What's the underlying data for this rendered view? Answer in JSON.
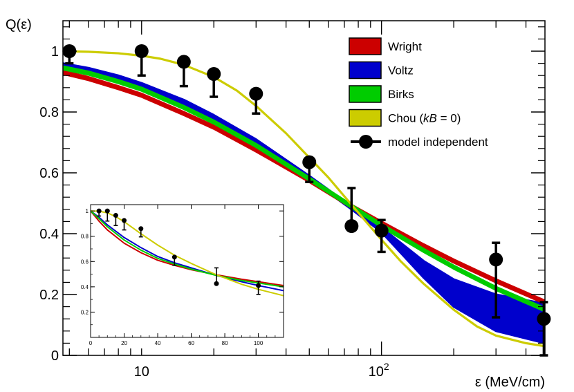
{
  "chart_data": [
    {
      "type": "line",
      "ylabel": "Q(ε)",
      "xlabel": "ε (MeV/cm)",
      "xscale": "log",
      "xlim": [
        4.7,
        480
      ],
      "ylim": [
        0,
        1.1
      ],
      "x_ticks": [
        {
          "value": 10,
          "label": "10"
        },
        {
          "value": 100,
          "label": "10",
          "sup": "2"
        }
      ],
      "y_ticks": [
        {
          "value": 0,
          "label": "0"
        },
        {
          "value": 0.2,
          "label": "0.2"
        },
        {
          "value": 0.4,
          "label": "0.4"
        },
        {
          "value": 0.6,
          "label": "0.6"
        },
        {
          "value": 0.8,
          "label": "0.8"
        },
        {
          "value": 1,
          "label": "1"
        }
      ],
      "legend": {
        "position": "top-right",
        "entries": [
          {
            "label": "Wright",
            "color": "#cc0000",
            "kind": "box"
          },
          {
            "label": "Voltz",
            "color": "#0000cc",
            "kind": "box"
          },
          {
            "label": "Birks",
            "color": "#00cc00",
            "kind": "box"
          },
          {
            "label_parts": [
              "Chou (",
              "kB",
              " = 0)"
            ],
            "color": "#cccc00",
            "kind": "box"
          },
          {
            "label": "model independent",
            "color": "#000000",
            "kind": "marker"
          }
        ]
      },
      "series": [
        {
          "name": "Voltz",
          "color": "#0000cc",
          "kind": "band",
          "x": [
            4.7,
            6,
            8,
            10,
            15,
            20,
            30,
            50,
            75,
            100,
            150,
            200,
            300,
            480
          ],
          "upper": [
            0.96,
            0.945,
            0.92,
            0.895,
            0.84,
            0.79,
            0.71,
            0.59,
            0.49,
            0.42,
            0.31,
            0.25,
            0.2,
            0.17
          ],
          "lower": [
            0.95,
            0.93,
            0.905,
            0.88,
            0.825,
            0.775,
            0.695,
            0.58,
            0.48,
            0.405,
            0.255,
            0.16,
            0.08,
            0.04
          ]
        },
        {
          "name": "Wright",
          "color": "#cc0000",
          "kind": "band",
          "x": [
            4.7,
            6,
            8,
            10,
            15,
            20,
            30,
            50,
            75,
            100,
            150,
            200,
            300,
            480
          ],
          "upper": [
            0.935,
            0.915,
            0.885,
            0.86,
            0.8,
            0.755,
            0.68,
            0.58,
            0.495,
            0.44,
            0.365,
            0.315,
            0.25,
            0.18
          ],
          "lower": [
            0.925,
            0.905,
            0.875,
            0.85,
            0.79,
            0.745,
            0.67,
            0.57,
            0.485,
            0.43,
            0.355,
            0.305,
            0.24,
            0.17
          ]
        },
        {
          "name": "Birks",
          "color": "#00cc00",
          "kind": "band",
          "x": [
            4.7,
            6,
            8,
            10,
            15,
            20,
            30,
            50,
            75,
            100,
            150,
            200,
            300,
            480
          ],
          "upper": [
            0.95,
            0.933,
            0.905,
            0.88,
            0.82,
            0.772,
            0.695,
            0.585,
            0.495,
            0.432,
            0.35,
            0.295,
            0.225,
            0.155
          ],
          "lower": [
            0.94,
            0.923,
            0.895,
            0.87,
            0.81,
            0.762,
            0.685,
            0.575,
            0.485,
            0.422,
            0.34,
            0.285,
            0.215,
            0.145
          ]
        },
        {
          "name": "Chou (kB = 0)",
          "color": "#cccc00",
          "kind": "line",
          "x": [
            4.7,
            6,
            8,
            10,
            12,
            15,
            20,
            25,
            30,
            40,
            50,
            60,
            75,
            100,
            120,
            150,
            200,
            250,
            300,
            400,
            480
          ],
          "y": [
            1.0,
            0.998,
            0.993,
            0.985,
            0.975,
            0.955,
            0.915,
            0.87,
            0.82,
            0.73,
            0.65,
            0.585,
            0.495,
            0.38,
            0.31,
            0.235,
            0.15,
            0.095,
            0.065,
            0.04,
            0.03
          ]
        },
        {
          "name": "model independent",
          "color": "#000000",
          "kind": "points",
          "points": [
            {
              "x": 5,
              "y": 1.0,
              "lo": 0.96,
              "hi": 1.0
            },
            {
              "x": 10,
              "y": 1.0,
              "lo": 0.92,
              "hi": 1.0
            },
            {
              "x": 15,
              "y": 0.965,
              "lo": 0.885,
              "hi": 0.965
            },
            {
              "x": 20,
              "y": 0.925,
              "lo": 0.85,
              "hi": 0.925
            },
            {
              "x": 30,
              "y": 0.86,
              "lo": 0.795,
              "hi": 0.86
            },
            {
              "x": 50,
              "y": 0.635,
              "lo": 0.57,
              "hi": 0.635
            },
            {
              "x": 75,
              "y": 0.425,
              "lo": 0.425,
              "hi": 0.55
            },
            {
              "x": 100,
              "y": 0.41,
              "lo": 0.34,
              "hi": 0.445
            },
            {
              "x": 300,
              "y": 0.315,
              "lo": 0.125,
              "hi": 0.37
            },
            {
              "x": 475,
              "y": 0.12,
              "lo": 0.0,
              "hi": 0.175
            }
          ]
        }
      ]
    },
    {
      "type": "line",
      "role": "inset",
      "xscale": "linear",
      "xlim": [
        0,
        115
      ],
      "ylim": [
        0,
        1.05
      ],
      "x_ticks": [
        {
          "value": 0,
          "label": "0"
        },
        {
          "value": 20,
          "label": "20"
        },
        {
          "value": 40,
          "label": "40"
        },
        {
          "value": 60,
          "label": "60"
        },
        {
          "value": 80,
          "label": "80"
        },
        {
          "value": 100,
          "label": "100"
        }
      ],
      "y_ticks": [
        {
          "value": 0.2,
          "label": "0.2"
        },
        {
          "value": 0.4,
          "label": "0.4"
        },
        {
          "value": 0.6,
          "label": "0.6"
        },
        {
          "value": 0.8,
          "label": "0.8"
        },
        {
          "value": 1,
          "label": "1"
        }
      ],
      "series": [
        {
          "name": "Wright",
          "color": "#cc0000",
          "x": [
            0,
            5,
            10,
            20,
            30,
            40,
            50,
            60,
            75,
            90,
            100,
            115
          ],
          "y": [
            1.0,
            0.92,
            0.85,
            0.745,
            0.67,
            0.61,
            0.57,
            0.535,
            0.495,
            0.46,
            0.44,
            0.41
          ]
        },
        {
          "name": "Voltz",
          "color": "#0000cc",
          "x": [
            0,
            5,
            10,
            20,
            30,
            40,
            50,
            60,
            75,
            90,
            100,
            115
          ],
          "y": [
            1.0,
            0.95,
            0.89,
            0.79,
            0.71,
            0.64,
            0.59,
            0.55,
            0.49,
            0.44,
            0.41,
            0.37
          ]
        },
        {
          "name": "Birks",
          "color": "#00cc00",
          "x": [
            0,
            5,
            10,
            20,
            30,
            40,
            50,
            60,
            75,
            90,
            100,
            115
          ],
          "y": [
            1.0,
            0.94,
            0.875,
            0.77,
            0.69,
            0.625,
            0.58,
            0.54,
            0.49,
            0.45,
            0.43,
            0.4
          ]
        },
        {
          "name": "Chou (kB = 0)",
          "color": "#cccc00",
          "x": [
            0,
            5,
            10,
            15,
            20,
            30,
            40,
            50,
            60,
            75,
            90,
            100,
            115
          ],
          "y": [
            1.0,
            0.998,
            0.985,
            0.955,
            0.915,
            0.82,
            0.73,
            0.65,
            0.585,
            0.495,
            0.42,
            0.38,
            0.33
          ]
        },
        {
          "name": "model independent",
          "color": "#000000",
          "kind": "points",
          "points": [
            {
              "x": 5,
              "y": 1.0,
              "lo": 0.96,
              "hi": 1.0
            },
            {
              "x": 10,
              "y": 1.0,
              "lo": 0.92,
              "hi": 1.0
            },
            {
              "x": 15,
              "y": 0.965,
              "lo": 0.885,
              "hi": 0.965
            },
            {
              "x": 20,
              "y": 0.925,
              "lo": 0.85,
              "hi": 0.925
            },
            {
              "x": 30,
              "y": 0.86,
              "lo": 0.795,
              "hi": 0.86
            },
            {
              "x": 50,
              "y": 0.635,
              "lo": 0.57,
              "hi": 0.635
            },
            {
              "x": 75,
              "y": 0.425,
              "lo": 0.425,
              "hi": 0.55
            },
            {
              "x": 100,
              "y": 0.41,
              "lo": 0.34,
              "hi": 0.445
            }
          ]
        }
      ]
    }
  ]
}
